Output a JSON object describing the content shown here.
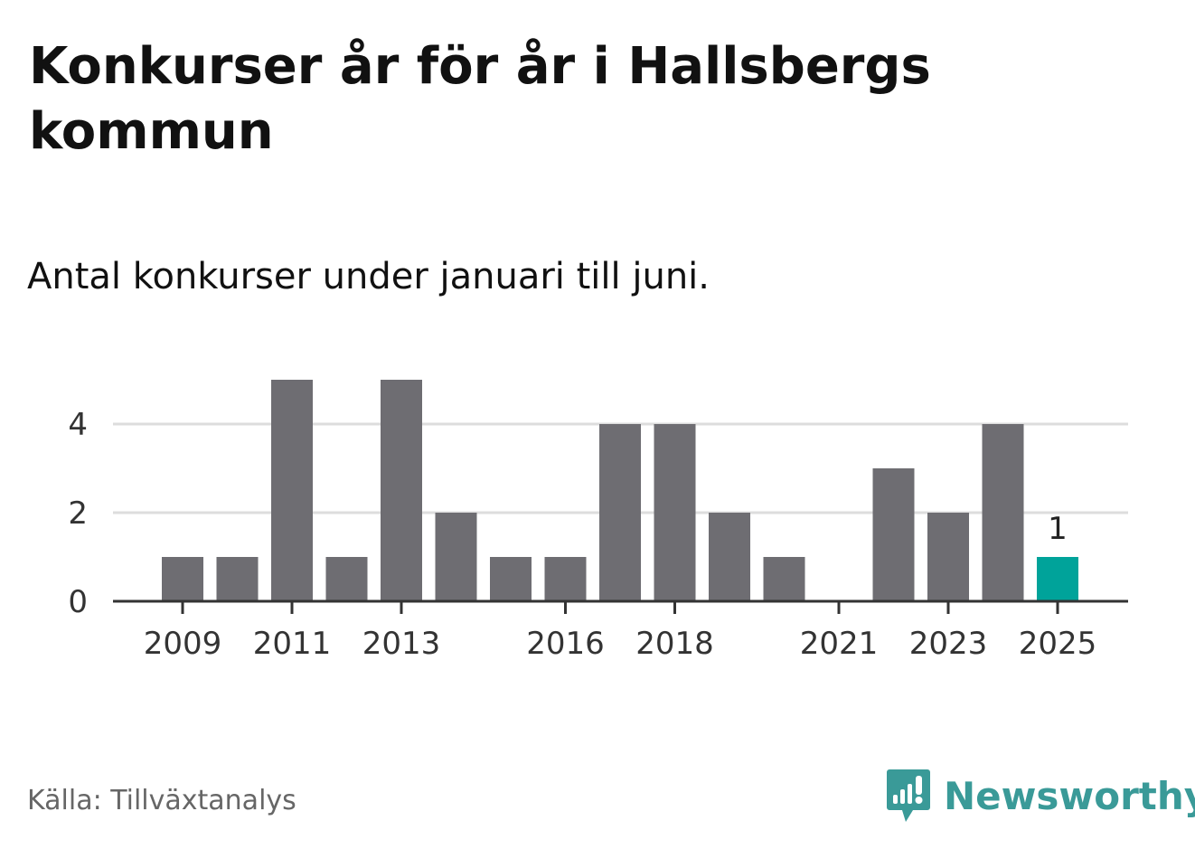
{
  "title": "Konkurser år för år i Hallsbergs kommun",
  "subtitle": "Antal konkurser under januari till juni.",
  "source": "Källa: Tillväxtanalys",
  "brand": {
    "name": "Newsworthy",
    "icon": "newsworthy-logo-icon",
    "color": "#3a9a98"
  },
  "chart_data": {
    "type": "bar",
    "categories": [
      "2009",
      "2010",
      "2011",
      "2012",
      "2013",
      "2014",
      "2015",
      "2016",
      "2017",
      "2018",
      "2019",
      "2020",
      "2021",
      "2022",
      "2023",
      "2024",
      "2025"
    ],
    "values": [
      1,
      1,
      5,
      1,
      5,
      2,
      1,
      1,
      4,
      4,
      2,
      1,
      0,
      3,
      2,
      4,
      1
    ],
    "x_tick_labels": [
      "2009",
      "2011",
      "2013",
      "2016",
      "2018",
      "2021",
      "2023",
      "2025"
    ],
    "y_ticks": [
      0,
      2,
      4
    ],
    "ylim": [
      0,
      5
    ],
    "grid": true,
    "highlight": {
      "category": "2025",
      "label": "1",
      "color": "#00a39a"
    },
    "bar_color": "#6e6d72",
    "xlabel": "",
    "ylabel": ""
  }
}
